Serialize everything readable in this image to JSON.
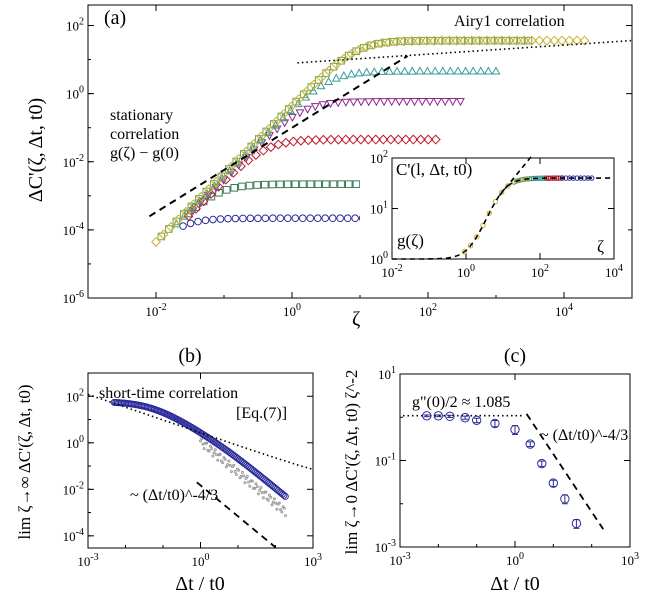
{
  "chart_data": [
    {
      "panel": "(a)",
      "type": "scatter",
      "xlabel": "ζ",
      "ylabel": "ΔC'(ζ, Δt, t0)",
      "xscale": "log",
      "yscale": "log",
      "xlim": [
        0.001,
        100000
      ],
      "ylim": [
        1e-06,
        400
      ],
      "xticks": [
        "10^-2",
        "10^0",
        "10^2",
        "10^4"
      ],
      "yticks": [
        "10^-6",
        "10^-4",
        "10^-2",
        "10^0",
        "10^2"
      ],
      "annotations": {
        "airy": "Airy1 correlation",
        "stationary_1": "stationary",
        "stationary_2": "correlation",
        "stationary_3": "g(ζ) − g(0)"
      },
      "series": [
        {
          "color": "#2b2b9a",
          "marker": "circle",
          "plateau": 0.00022,
          "c": 0.021,
          "xmin": 0.025,
          "xmax": 50
        },
        {
          "color": "#3a7a5a",
          "marker": "square",
          "plateau": 0.0022,
          "c": 0.075,
          "xmin": 0.03,
          "xmax": 70
        },
        {
          "color": "#c01b2b",
          "marker": "diamond",
          "plateau": 0.045,
          "c": 0.4,
          "xmin": 0.03,
          "xmax": 130
        },
        {
          "color": "#8b2a8b",
          "marker": "triangle-down",
          "plateau": 0.6,
          "c": 1.4,
          "xmin": 0.035,
          "xmax": 300
        },
        {
          "color": "#3a9a9a",
          "marker": "triangle-up",
          "plateau": 4.5,
          "c": 3.5,
          "xmin": 0.02,
          "xmax": 1000
        },
        {
          "color": "#7aa04a",
          "marker": "square",
          "plateau": 36,
          "c": 9,
          "xmin": 0.012,
          "xmax": 3000
        },
        {
          "color": "#c8b030",
          "marker": "diamond",
          "plateau": 36,
          "c": 9,
          "xmin": 0.01,
          "xmax": 20000
        }
      ],
      "reference_lines": {
        "dashed_slope": 2,
        "dotted_level": 36
      }
    },
    {
      "panel": "inset",
      "type": "scatter",
      "ylabel": "C'(l, Δt, t0)",
      "xlabel": "ζ",
      "curve_label": "g(ζ)",
      "xscale": "log",
      "yscale": "log",
      "xlim": [
        0.01,
        10000
      ],
      "ylim": [
        1,
        100
      ],
      "xticks": [
        "10^-2",
        "10^0",
        "10^2",
        "10^4"
      ],
      "yticks": [
        "10^0",
        "10^1",
        "10^2"
      ]
    },
    {
      "panel": "(b)",
      "type": "scatter",
      "xlabel": "Δt / t0",
      "ylabel": "lim ζ→∞ ΔC'(ζ, Δt, t0)",
      "xscale": "log",
      "yscale": "log",
      "xlim": [
        0.001,
        1000
      ],
      "ylim": [
        3e-05,
        1000
      ],
      "xticks": [
        "10^-3",
        "10^0",
        "10^3"
      ],
      "yticks": [
        "10^-4",
        "10^-2",
        "10^0",
        "10^2"
      ],
      "annotations": {
        "short": "short-time correlation",
        "eq": "[Eq.(7)]",
        "slope": "~ (Δt/t0)^-4/3"
      },
      "data_color": "#2b2b9a"
    },
    {
      "panel": "(c)",
      "type": "scatter",
      "xlabel": "Δt / t0",
      "ylabel": "lim ζ→0 ΔC'(ζ, Δt, t0) ζ^-2",
      "xscale": "log",
      "yscale": "log",
      "xlim": [
        0.001,
        1000
      ],
      "ylim": [
        0.001,
        10
      ],
      "xticks": [
        "10^-3",
        "10^0",
        "10^3"
      ],
      "yticks": [
        "10^-3",
        "10^-1",
        "10^1"
      ],
      "annotations": {
        "gpp": "g\"(0)/2 ≈ 1.085",
        "slope": "~ (Δt/t0)^-4/3"
      },
      "points": [
        {
          "x": 0.005,
          "y": 1.08,
          "err": 0.05
        },
        {
          "x": 0.01,
          "y": 1.08,
          "err": 0.05
        },
        {
          "x": 0.02,
          "y": 1.05,
          "err": 0.06
        },
        {
          "x": 0.05,
          "y": 0.98,
          "err": 0.08
        },
        {
          "x": 0.1,
          "y": 0.85,
          "err": 0.1
        },
        {
          "x": 0.3,
          "y": 0.72,
          "err": 0.12
        },
        {
          "x": 1,
          "y": 0.52,
          "err": 0.12
        },
        {
          "x": 2.5,
          "y": 0.24,
          "err": 0.03
        },
        {
          "x": 5,
          "y": 0.085,
          "err": 0.012
        },
        {
          "x": 10,
          "y": 0.03,
          "err": 0.005
        },
        {
          "x": 20,
          "y": 0.013,
          "err": 0.003
        },
        {
          "x": 40,
          "y": 0.0035,
          "err": 0.0008
        }
      ],
      "reference_lines": {
        "dotted_level": 1.085,
        "dashed_slope": -1.333
      }
    }
  ]
}
